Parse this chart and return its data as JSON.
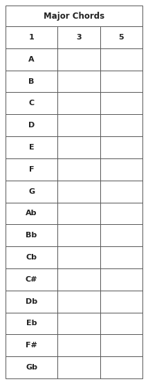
{
  "title": "Major Chords",
  "headers": [
    "1",
    "3",
    "5"
  ],
  "rows": [
    "A",
    "B",
    "C",
    "D",
    "E",
    "F",
    "G",
    "Ab",
    "Bb",
    "Cb",
    "C#",
    "Db",
    "Eb",
    "F#",
    "Gb"
  ],
  "background_color": "#ffffff",
  "border_color": "#555555",
  "text_color": "#222222",
  "title_fontsize": 8.5,
  "header_fontsize": 8,
  "row_label_fontsize": 8
}
